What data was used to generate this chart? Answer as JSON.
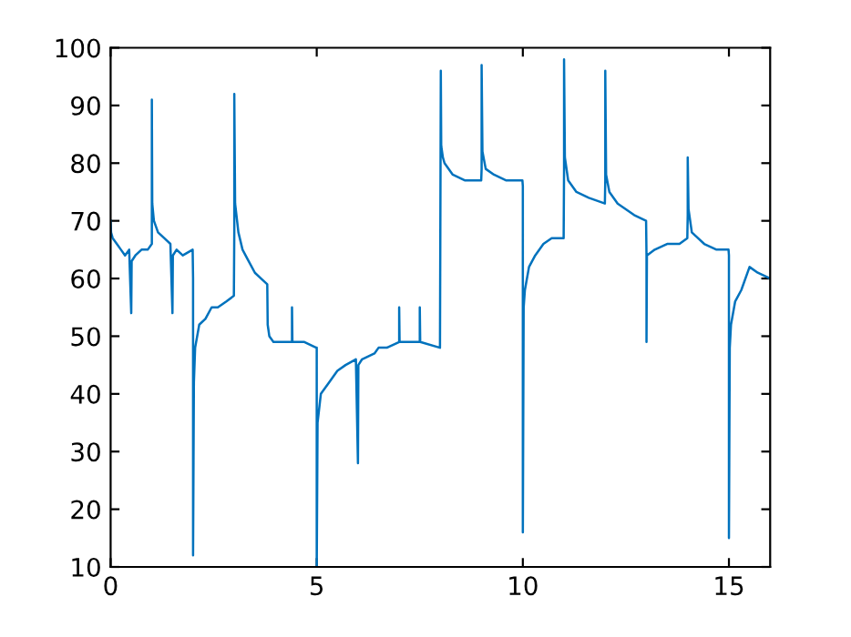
{
  "chart_data": {
    "type": "line",
    "xlim": [
      0,
      16
    ],
    "ylim": [
      10,
      100
    ],
    "xticks": [
      0,
      5,
      10,
      15
    ],
    "yticks": [
      10,
      20,
      30,
      40,
      50,
      60,
      70,
      80,
      90,
      100
    ],
    "grid": false,
    "marker": "none",
    "line_style": "solid",
    "series": [
      {
        "color": "#0072bd",
        "x": [
          0,
          0.01,
          0.05,
          0.15,
          0.25,
          0.35,
          0.45,
          0.5,
          0.51,
          0.6,
          0.75,
          0.9,
          1.0,
          1.0,
          1.01,
          1.05,
          1.15,
          1.3,
          1.45,
          1.5,
          1.51,
          1.6,
          1.75,
          1.99,
          2.0,
          2.0,
          2.02,
          2.05,
          2.15,
          2.3,
          2.45,
          2.6,
          2.8,
          2.99,
          3.0,
          3.0,
          3.02,
          3.1,
          3.2,
          3.35,
          3.5,
          3.65,
          3.8,
          3.81,
          3.85,
          3.95,
          4.2,
          4.4,
          4.4,
          4.41,
          4.7,
          4.99,
          5.0,
          5.0,
          5.02,
          5.1,
          5.3,
          5.5,
          5.7,
          5.95,
          6.0,
          6.01,
          6.1,
          6.4,
          6.5,
          6.7,
          7.0,
          7.0,
          7.01,
          7.5,
          7.5,
          7.51,
          7.99,
          8.0,
          8.01,
          8.02,
          8.06,
          8.1,
          8.3,
          8.6,
          8.99,
          9.0,
          9.0,
          9.02,
          9.1,
          9.3,
          9.6,
          9.99,
          10.0,
          10.0,
          10.02,
          10.05,
          10.15,
          10.3,
          10.5,
          10.7,
          10.99,
          11.0,
          11.0,
          11.02,
          11.1,
          11.3,
          11.6,
          11.99,
          12.0,
          12.0,
          12.02,
          12.1,
          12.3,
          12.5,
          12.7,
          12.99,
          13.0,
          13.0,
          13.01,
          13.2,
          13.5,
          13.8,
          13.99,
          14.0,
          14.0,
          14.02,
          14.1,
          14.4,
          14.7,
          14.99,
          15.0,
          15.0,
          15.02,
          15.05,
          15.15,
          15.3,
          15.5,
          15.7,
          16.0
        ],
        "values": [
          70,
          68,
          67,
          66,
          65,
          64,
          65,
          54,
          63,
          64,
          65,
          65,
          66,
          91,
          73,
          70,
          68,
          67,
          66,
          54,
          64,
          65,
          64,
          65,
          60,
          12,
          42,
          48,
          52,
          53,
          55,
          55,
          56,
          57,
          68,
          92,
          73,
          68,
          65,
          63,
          61,
          60,
          59,
          52,
          50,
          49,
          49,
          49,
          55,
          49,
          49,
          48,
          48,
          10,
          35,
          40,
          42,
          44,
          45,
          46,
          28,
          45,
          46,
          47,
          48,
          48,
          49,
          55,
          49,
          49,
          55,
          49,
          48,
          72,
          96,
          83,
          81,
          80,
          78,
          77,
          77,
          79,
          97,
          82,
          79,
          78,
          77,
          77,
          76,
          16,
          55,
          58,
          62,
          64,
          66,
          67,
          67,
          79,
          98,
          81,
          77,
          75,
          74,
          73,
          77,
          96,
          78,
          75,
          73,
          72,
          71,
          70,
          64,
          49,
          64,
          65,
          66,
          66,
          67,
          71,
          81,
          72,
          68,
          66,
          65,
          65,
          64,
          15,
          48,
          52,
          56,
          58,
          62,
          61,
          60
        ]
      }
    ]
  }
}
